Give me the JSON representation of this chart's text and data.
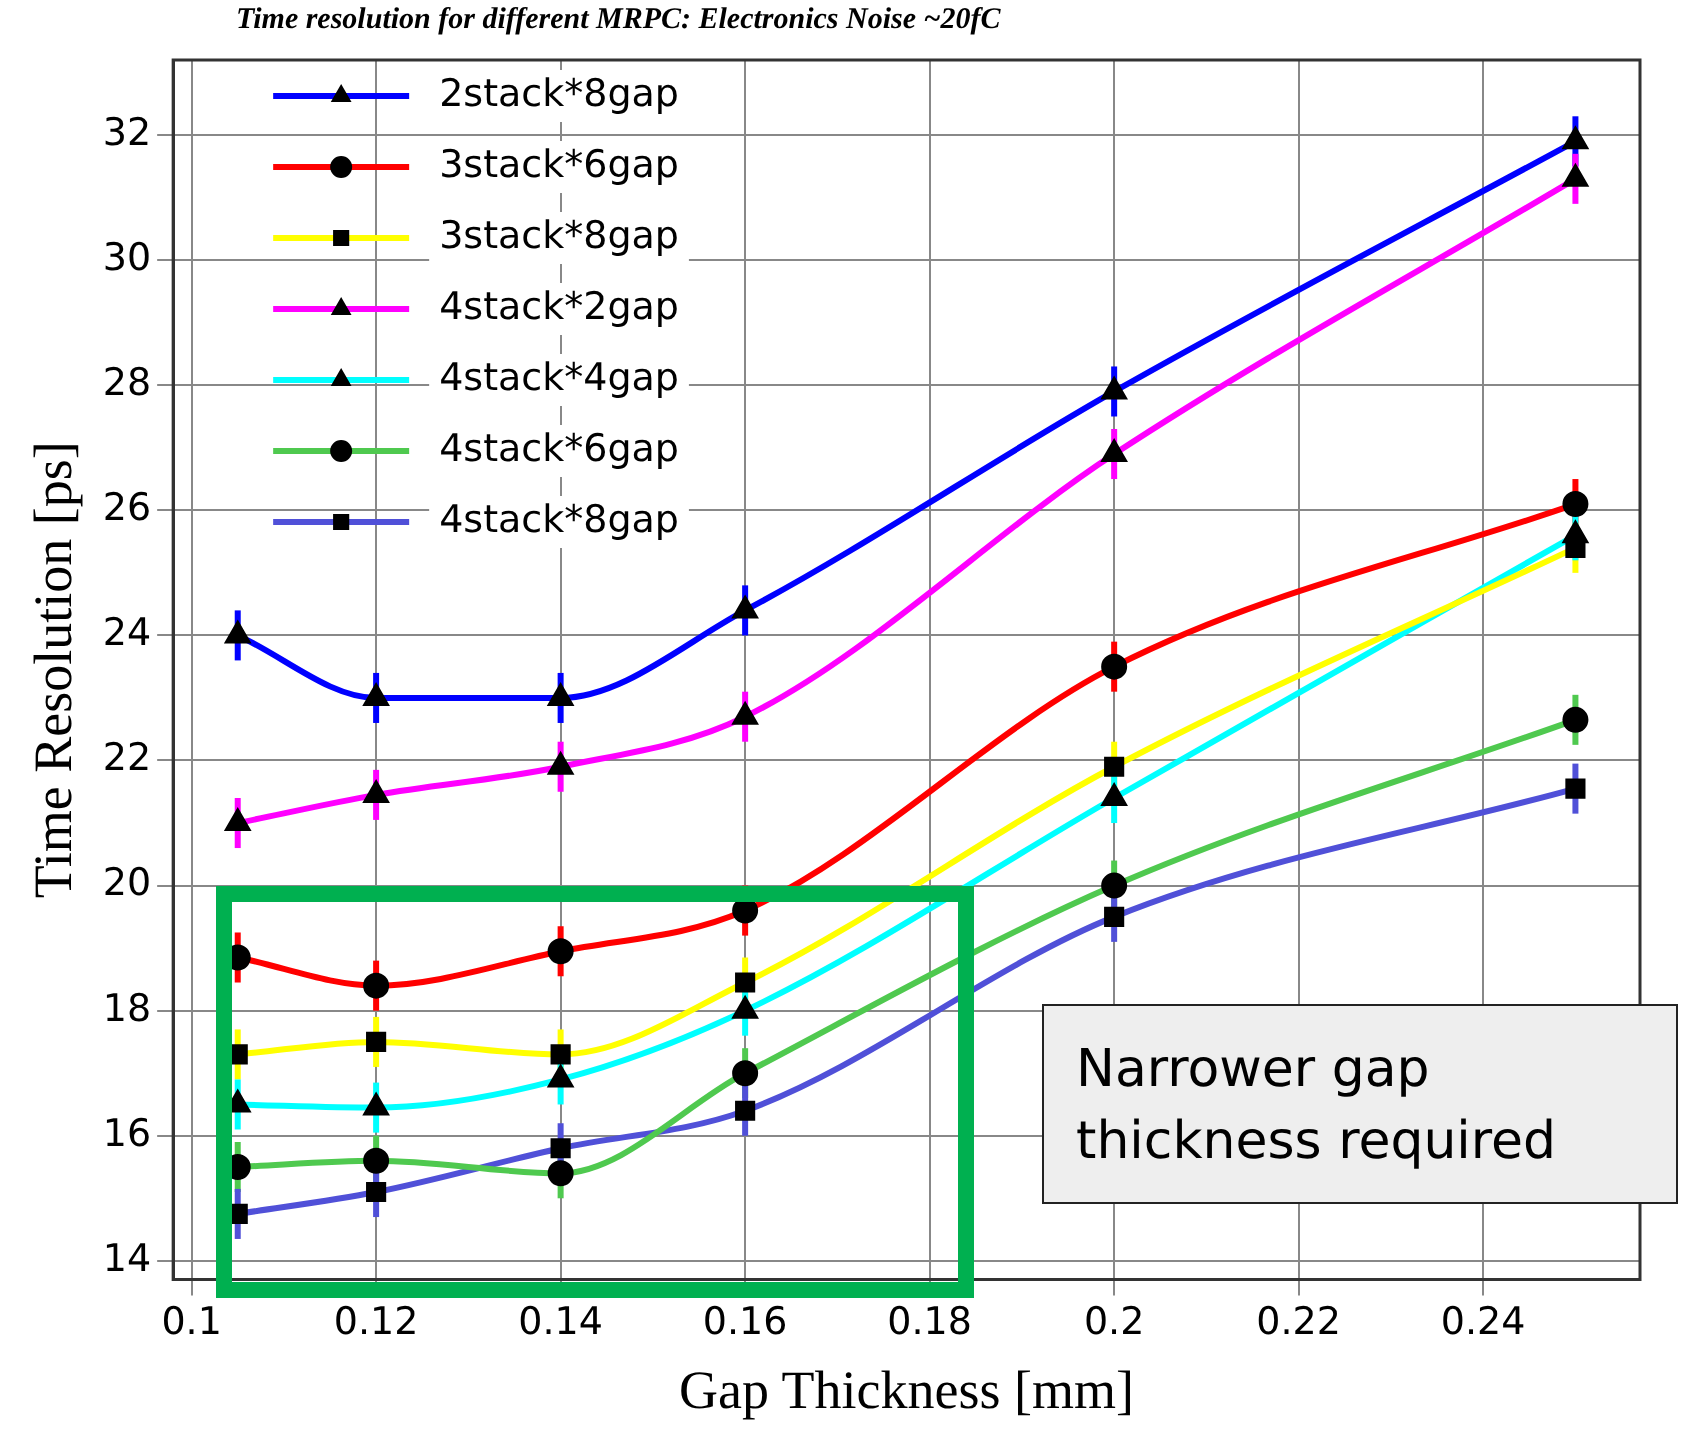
{
  "chart_data": {
    "type": "line",
    "title": "Time resolution for different MRPC: Electronics Noise ~20fC",
    "xlabel": "Gap Thickness [mm]",
    "ylabel": "Time Resolution [ps]",
    "x": [
      0.105,
      0.12,
      0.14,
      0.16,
      0.2,
      0.25
    ],
    "xlim": [
      0.098,
      0.257
    ],
    "xticks": [
      {
        "value": 0.1,
        "label": "0.1"
      },
      0.12,
      0.14,
      0.16,
      0.18,
      {
        "value": 0.2,
        "label": "0.2"
      },
      0.22,
      0.24
    ],
    "ylim": [
      13.7,
      33.2
    ],
    "yticks": [
      14,
      16,
      18,
      20,
      22,
      24,
      26,
      28,
      30,
      32
    ],
    "grid": true,
    "legend": "top left",
    "series": [
      {
        "name": "2stack*8gap",
        "color": "#0000ff",
        "marker": "triangle",
        "values": [
          24.0,
          23.0,
          23.0,
          24.4,
          27.9,
          31.9
        ],
        "errors": [
          0.4,
          0.4,
          0.4,
          0.4,
          0.4,
          0.4
        ]
      },
      {
        "name": "3stack*6gap",
        "color": "#ff0000",
        "marker": "circle",
        "values": [
          18.85,
          18.4,
          18.95,
          19.6,
          23.5,
          26.1
        ],
        "errors": [
          0.4,
          0.4,
          0.4,
          0.4,
          0.4,
          0.4
        ]
      },
      {
        "name": "3stack*8gap",
        "color": "#ffff00",
        "marker": "square",
        "values": [
          17.3,
          17.5,
          17.3,
          18.45,
          21.9,
          25.4
        ],
        "errors": [
          0.4,
          0.4,
          0.4,
          0.4,
          0.4,
          0.4
        ]
      },
      {
        "name": "4stack*2gap",
        "color": "#ff00ff",
        "marker": "triangle",
        "values": [
          21.0,
          21.45,
          21.9,
          22.7,
          26.9,
          31.3
        ],
        "errors": [
          0.4,
          0.4,
          0.4,
          0.4,
          0.4,
          0.4
        ]
      },
      {
        "name": "4stack*4gap",
        "color": "#00ffff",
        "marker": "triangle",
        "values": [
          16.5,
          16.45,
          16.9,
          18.0,
          21.4,
          25.6
        ],
        "errors": [
          0.4,
          0.4,
          0.4,
          0.4,
          0.4,
          0.4
        ]
      },
      {
        "name": "4stack*6gap",
        "color": "#4fc94f",
        "marker": "circle",
        "values": [
          15.5,
          15.6,
          15.4,
          17.0,
          20.0,
          22.65
        ],
        "errors": [
          0.4,
          0.4,
          0.4,
          0.4,
          0.4,
          0.4
        ]
      },
      {
        "name": "4stack*8gap",
        "color": "#5050d8",
        "marker": "square",
        "values": [
          14.75,
          15.1,
          15.8,
          16.4,
          19.5,
          21.55
        ],
        "errors": [
          0.4,
          0.4,
          0.4,
          0.4,
          0.4,
          0.4
        ]
      }
    ],
    "annotations": [
      "Narrower gap thickness required"
    ]
  }
}
